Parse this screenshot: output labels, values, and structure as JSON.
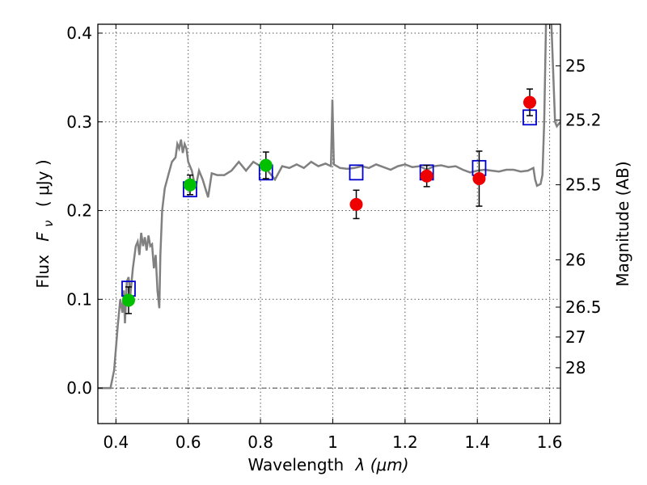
{
  "chart_data": {
    "type": "scatter",
    "xlabel_text": "Wavelength",
    "xlabel_math": "λ (μm)",
    "ylabel_text": "Flux",
    "ylabel_math": "F",
    "ylabel_sub": "ν",
    "ylabel_unit": "( μJy )",
    "y2label": "Magnitude (AB)",
    "xlim": [
      0.35,
      1.63
    ],
    "ylim": [
      -0.04,
      0.41
    ],
    "xticks": [
      {
        "value": 0.4,
        "label": "0.4"
      },
      {
        "value": 0.6,
        "label": "0.6"
      },
      {
        "value": 0.8,
        "label": "0.8"
      },
      {
        "value": 1.0,
        "label": "1"
      },
      {
        "value": 1.2,
        "label": "1.2"
      },
      {
        "value": 1.4,
        "label": "1.4"
      },
      {
        "value": 1.6,
        "label": "1.6"
      }
    ],
    "yticks": [
      {
        "value": 0.0,
        "label": "0.0"
      },
      {
        "value": 0.1,
        "label": "0.1"
      },
      {
        "value": 0.2,
        "label": "0.2"
      },
      {
        "value": 0.3,
        "label": "0.3"
      },
      {
        "value": 0.4,
        "label": "0.4"
      }
    ],
    "y2ticks": [
      {
        "value": 25,
        "label": "25"
      },
      {
        "value": 25.2,
        "label": "25.2"
      },
      {
        "value": 25.5,
        "label": "25.5"
      },
      {
        "value": 26,
        "label": "26"
      },
      {
        "value": 26.5,
        "label": "26.5"
      },
      {
        "value": 27,
        "label": "27"
      },
      {
        "value": 28,
        "label": "28"
      }
    ],
    "grid": true,
    "zero_line": true,
    "colors": {
      "sed": "#808080",
      "green": "#00c000",
      "red": "#ee0000",
      "box": "#0000cc",
      "errorbar": "#000000",
      "grid": "#555555"
    },
    "sed_model": [
      [
        0.35,
        0.0
      ],
      [
        0.385,
        0.0
      ],
      [
        0.395,
        0.02
      ],
      [
        0.405,
        0.07
      ],
      [
        0.412,
        0.1
      ],
      [
        0.418,
        0.085
      ],
      [
        0.422,
        0.11
      ],
      [
        0.425,
        0.073
      ],
      [
        0.43,
        0.12
      ],
      [
        0.435,
        0.125
      ],
      [
        0.44,
        0.105
      ],
      [
        0.447,
        0.135
      ],
      [
        0.455,
        0.16
      ],
      [
        0.46,
        0.165
      ],
      [
        0.465,
        0.15
      ],
      [
        0.47,
        0.175
      ],
      [
        0.475,
        0.16
      ],
      [
        0.48,
        0.17
      ],
      [
        0.485,
        0.155
      ],
      [
        0.49,
        0.172
      ],
      [
        0.495,
        0.16
      ],
      [
        0.5,
        0.162
      ],
      [
        0.505,
        0.135
      ],
      [
        0.51,
        0.15
      ],
      [
        0.515,
        0.11
      ],
      [
        0.52,
        0.09
      ],
      [
        0.523,
        0.15
      ],
      [
        0.528,
        0.2
      ],
      [
        0.535,
        0.225
      ],
      [
        0.545,
        0.24
      ],
      [
        0.555,
        0.255
      ],
      [
        0.565,
        0.26
      ],
      [
        0.57,
        0.275
      ],
      [
        0.575,
        0.27
      ],
      [
        0.58,
        0.28
      ],
      [
        0.585,
        0.265
      ],
      [
        0.59,
        0.275
      ],
      [
        0.595,
        0.27
      ],
      [
        0.6,
        0.255
      ],
      [
        0.61,
        0.245
      ],
      [
        0.62,
        0.225
      ],
      [
        0.63,
        0.245
      ],
      [
        0.64,
        0.235
      ],
      [
        0.655,
        0.215
      ],
      [
        0.665,
        0.242
      ],
      [
        0.68,
        0.24
      ],
      [
        0.7,
        0.24
      ],
      [
        0.72,
        0.245
      ],
      [
        0.74,
        0.255
      ],
      [
        0.76,
        0.245
      ],
      [
        0.78,
        0.255
      ],
      [
        0.8,
        0.25
      ],
      [
        0.82,
        0.245
      ],
      [
        0.84,
        0.235
      ],
      [
        0.86,
        0.25
      ],
      [
        0.88,
        0.248
      ],
      [
        0.9,
        0.252
      ],
      [
        0.92,
        0.248
      ],
      [
        0.94,
        0.255
      ],
      [
        0.96,
        0.25
      ],
      [
        0.98,
        0.253
      ],
      [
        0.995,
        0.25
      ],
      [
        0.999,
        0.325
      ],
      [
        1.003,
        0.252
      ],
      [
        1.02,
        0.248
      ],
      [
        1.04,
        0.247
      ],
      [
        1.06,
        0.248
      ],
      [
        1.08,
        0.25
      ],
      [
        1.1,
        0.248
      ],
      [
        1.12,
        0.252
      ],
      [
        1.14,
        0.249
      ],
      [
        1.16,
        0.246
      ],
      [
        1.18,
        0.25
      ],
      [
        1.2,
        0.252
      ],
      [
        1.22,
        0.249
      ],
      [
        1.24,
        0.25
      ],
      [
        1.26,
        0.246
      ],
      [
        1.28,
        0.25
      ],
      [
        1.3,
        0.251
      ],
      [
        1.32,
        0.249
      ],
      [
        1.34,
        0.25
      ],
      [
        1.36,
        0.246
      ],
      [
        1.38,
        0.243
      ],
      [
        1.4,
        0.245
      ],
      [
        1.42,
        0.246
      ],
      [
        1.44,
        0.245
      ],
      [
        1.46,
        0.244
      ],
      [
        1.48,
        0.246
      ],
      [
        1.5,
        0.246
      ],
      [
        1.52,
        0.244
      ],
      [
        1.54,
        0.245
      ],
      [
        1.555,
        0.248
      ],
      [
        1.56,
        0.235
      ],
      [
        1.565,
        0.228
      ],
      [
        1.575,
        0.23
      ],
      [
        1.58,
        0.24
      ],
      [
        1.585,
        0.3
      ],
      [
        1.59,
        0.41
      ]
    ],
    "sed_model_tail": [
      [
        1.615,
        0.3
      ],
      [
        1.62,
        0.295
      ],
      [
        1.63,
        0.3
      ]
    ],
    "series": [
      {
        "marker": "square",
        "points": [
          [
            0.435,
            0.112
          ],
          [
            0.605,
            0.224
          ],
          [
            0.815,
            0.243
          ],
          [
            1.065,
            0.243
          ],
          [
            1.26,
            0.243
          ],
          [
            1.405,
            0.248
          ],
          [
            1.545,
            0.305
          ]
        ]
      },
      {
        "marker": "green-circle",
        "points": [
          {
            "x": 0.435,
            "y": 0.099,
            "yerr": 0.015
          },
          {
            "x": 0.605,
            "y": 0.229,
            "yerr": 0.011
          },
          {
            "x": 0.815,
            "y": 0.251,
            "yerr": 0.015
          }
        ]
      },
      {
        "marker": "red-circle",
        "points": [
          {
            "x": 1.065,
            "y": 0.207,
            "yerr": 0.016
          },
          {
            "x": 1.26,
            "y": 0.239,
            "yerr": 0.012
          },
          {
            "x": 1.405,
            "y": 0.236,
            "yerr": 0.031
          },
          {
            "x": 1.545,
            "y": 0.322,
            "yerr": 0.015
          }
        ]
      }
    ]
  }
}
